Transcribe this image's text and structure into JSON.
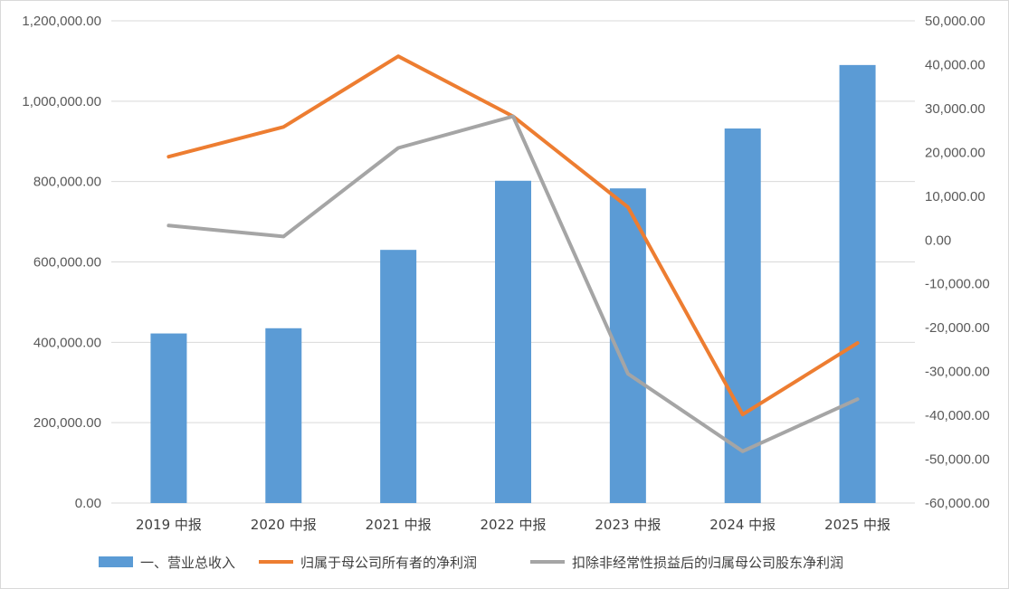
{
  "chart_data": {
    "type": "bar",
    "categories": [
      "2019 中报",
      "2020 中报",
      "2021 中报",
      "2022 中报",
      "2023 中报",
      "2024 中报",
      "2025 中报"
    ],
    "series": [
      {
        "name": "一、营业总收入",
        "type": "bar",
        "axis": "left",
        "color": "#5b9bd5",
        "values": [
          422000,
          435000,
          630000,
          802000,
          783000,
          932000,
          1090000
        ]
      },
      {
        "name": "归属于母公司所有者的净利润",
        "type": "line",
        "axis": "right",
        "color": "#ed7d31",
        "values": [
          19000,
          25800,
          41900,
          28200,
          7500,
          -39800,
          -23500
        ]
      },
      {
        "name": "扣除非经常性损益后的归属母公司股东净利润",
        "type": "line",
        "axis": "right",
        "color": "#a5a5a5",
        "values": [
          3300,
          800,
          21000,
          28200,
          -30500,
          -48200,
          -36300
        ]
      }
    ],
    "y_left": {
      "range": [
        0,
        1200000
      ],
      "ticks": [
        {
          "v": 0,
          "label": "0.00"
        },
        {
          "v": 200000,
          "label": "200,000.00"
        },
        {
          "v": 400000,
          "label": "400,000.00"
        },
        {
          "v": 600000,
          "label": "600,000.00"
        },
        {
          "v": 800000,
          "label": "800,000.00"
        },
        {
          "v": 1000000,
          "label": "1,000,000.00"
        },
        {
          "v": 1200000,
          "label": "1,200,000.00"
        }
      ]
    },
    "y_right": {
      "range": [
        -60000,
        50000
      ],
      "ticks": [
        {
          "v": 50000,
          "label": "50,000.00"
        },
        {
          "v": 40000,
          "label": "40,000.00"
        },
        {
          "v": 30000,
          "label": "30,000.00"
        },
        {
          "v": 20000,
          "label": "20,000.00"
        },
        {
          "v": 10000,
          "label": "10,000.00"
        },
        {
          "v": 0,
          "label": "0.00"
        },
        {
          "v": -10000,
          "label": "-10,000.00"
        },
        {
          "v": -20000,
          "label": "-20,000.00"
        },
        {
          "v": -30000,
          "label": "-30,000.00"
        },
        {
          "v": -40000,
          "label": "-40,000.00"
        },
        {
          "v": -50000,
          "label": "-50,000.00"
        },
        {
          "v": -60000,
          "label": "-60,000.00"
        }
      ]
    },
    "grid": true,
    "gridline_color": "#d9d9d9",
    "legend_position": "bottom"
  }
}
